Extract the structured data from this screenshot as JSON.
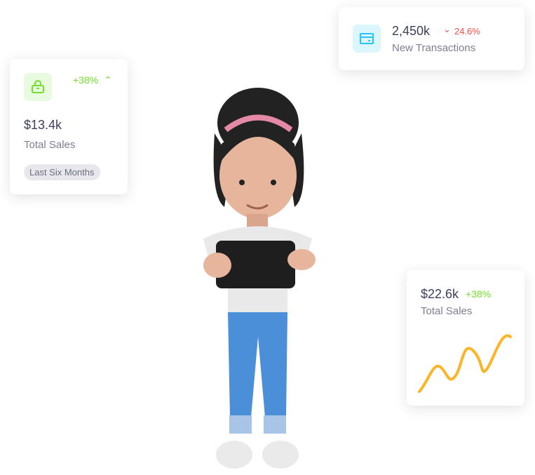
{
  "cards": {
    "total_sales_left": {
      "icon": "shopping-bag-icon",
      "change": "+38%",
      "change_direction": "up",
      "value": "$13.4k",
      "label": "Total Sales",
      "period": "Last Six Months"
    },
    "new_transactions": {
      "icon": "credit-card-icon",
      "value": "2,450k",
      "change": "24.6%",
      "change_direction": "down",
      "label": "New Transactions"
    },
    "total_sales_right": {
      "value": "$22.6k",
      "change": "+38%",
      "label": "Total Sales"
    }
  },
  "colors": {
    "positive": "#72e128",
    "negative": "#ff4d49",
    "info": "#26c6f9",
    "chart": "#fdb528",
    "text": "#3b3f5c"
  }
}
